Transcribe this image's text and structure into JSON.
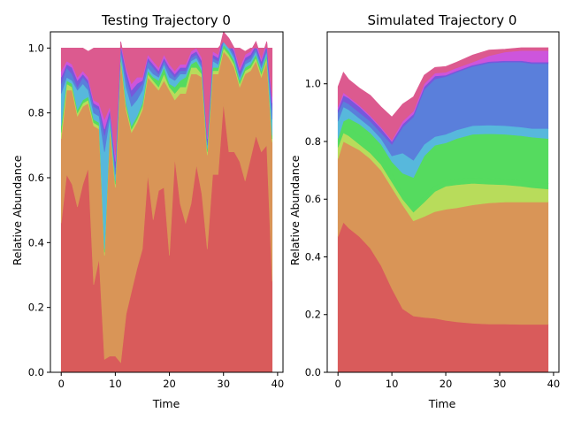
{
  "chart_data": [
    {
      "type": "area",
      "stacked": true,
      "title": "Testing Trajectory 0",
      "xlabel": "Time",
      "ylabel": "Relative Abundance",
      "xlim": [
        -2,
        41
      ],
      "ylim": [
        0,
        1.05
      ],
      "xticks": [
        0,
        10,
        20,
        30,
        40
      ],
      "yticks": [
        0.0,
        0.2,
        0.4,
        0.6,
        0.8,
        1.0
      ],
      "ytick_labels": [
        "0.0",
        "0.2",
        "0.4",
        "0.6",
        "0.8",
        "1.0"
      ],
      "grid": false,
      "x": [
        0,
        1,
        2,
        3,
        4,
        5,
        6,
        7,
        8,
        9,
        10,
        11,
        12,
        13,
        14,
        15,
        16,
        17,
        18,
        19,
        20,
        21,
        22,
        23,
        24,
        25,
        26,
        27,
        28,
        29,
        30,
        31,
        32,
        33,
        34,
        35,
        36,
        37,
        38,
        39
      ],
      "series": [
        {
          "color": "#d95b5b",
          "values": [
            0.46,
            0.61,
            0.58,
            0.51,
            0.58,
            0.63,
            0.27,
            0.35,
            0.04,
            0.05,
            0.05,
            0.03,
            0.18,
            0.25,
            0.32,
            0.38,
            0.61,
            0.47,
            0.56,
            0.57,
            0.36,
            0.66,
            0.52,
            0.46,
            0.52,
            0.64,
            0.55,
            0.38,
            0.61,
            0.61,
            0.83,
            0.68,
            0.68,
            0.65,
            0.59,
            0.66,
            0.73,
            0.68,
            0.7,
            0.28
          ]
        },
        {
          "color": "#d99557",
          "values": [
            0.26,
            0.26,
            0.29,
            0.28,
            0.24,
            0.2,
            0.49,
            0.4,
            0.32,
            0.7,
            0.52,
            0.93,
            0.63,
            0.49,
            0.45,
            0.43,
            0.3,
            0.42,
            0.31,
            0.33,
            0.51,
            0.18,
            0.34,
            0.4,
            0.4,
            0.28,
            0.36,
            0.29,
            0.31,
            0.31,
            0.16,
            0.29,
            0.26,
            0.23,
            0.33,
            0.27,
            0.23,
            0.23,
            0.26,
            0.43
          ]
        },
        {
          "color": "#b8dc5b",
          "values": [
            0.02,
            0.02,
            0.01,
            0.01,
            0.01,
            0.01,
            0.01,
            0.01,
            0.01,
            0.01,
            0.01,
            0.01,
            0.01,
            0.01,
            0.01,
            0.01,
            0.01,
            0.01,
            0.01,
            0.02,
            0.01,
            0.02,
            0.02,
            0.02,
            0.02,
            0.02,
            0.01,
            0.01,
            0.01,
            0.01,
            0.01,
            0.01,
            0.01,
            0.01,
            0.01,
            0.01,
            0.01,
            0.01,
            0.01,
            0.01
          ]
        },
        {
          "color": "#55db5f",
          "values": [
            0.02,
            0.01,
            0.01,
            0.01,
            0.01,
            0.01,
            0.01,
            0.01,
            0.01,
            0.01,
            0.01,
            0.01,
            0.01,
            0.01,
            0.01,
            0.01,
            0.01,
            0.01,
            0.02,
            0.02,
            0.01,
            0.02,
            0.02,
            0.03,
            0.01,
            0.02,
            0.01,
            0.01,
            0.01,
            0.01,
            0.01,
            0.01,
            0.01,
            0.01,
            0.01,
            0.01,
            0.01,
            0.01,
            0.01,
            0.01
          ]
        },
        {
          "color": "#57b8dc",
          "values": [
            0.1,
            0.01,
            0.01,
            0.06,
            0.05,
            0.02,
            0.02,
            0.02,
            0.3,
            0.02,
            0.02,
            0.01,
            0.05,
            0.06,
            0.05,
            0.04,
            0.01,
            0.01,
            0.01,
            0.01,
            0.02,
            0.02,
            0.02,
            0.01,
            0.01,
            0.01,
            0.01,
            0.01,
            0.02,
            0.01,
            0.01,
            0.01,
            0.01,
            0.01,
            0.01,
            0.01,
            0.01,
            0.01,
            0.01,
            0.05
          ]
        },
        {
          "color": "#5a7fdb",
          "values": [
            0.03,
            0.03,
            0.02,
            0.01,
            0.02,
            0.02,
            0.02,
            0.02,
            0.05,
            0.01,
            0.02,
            0.01,
            0.03,
            0.03,
            0.03,
            0.02,
            0.02,
            0.02,
            0.01,
            0.01,
            0.02,
            0.01,
            0.01,
            0.01,
            0.01,
            0.01,
            0.01,
            0.01,
            0.01,
            0.01,
            0.01,
            0.01,
            0.01,
            0.01,
            0.01,
            0.01,
            0.01,
            0.01,
            0.01,
            0.03
          ]
        },
        {
          "color": "#7758db",
          "values": [
            0.02,
            0.01,
            0.02,
            0.02,
            0.01,
            0.01,
            0.01,
            0.01,
            0.02,
            0.01,
            0.02,
            0.01,
            0.02,
            0.02,
            0.02,
            0.01,
            0.01,
            0.01,
            0.01,
            0.01,
            0.01,
            0.01,
            0.01,
            0.01,
            0.01,
            0.01,
            0.01,
            0.01,
            0.01,
            0.01,
            0.01,
            0.01,
            0.01,
            0.01,
            0.01,
            0.01,
            0.01,
            0.01,
            0.01,
            0.02
          ]
        },
        {
          "color": "#cd55dc",
          "values": [
            0.02,
            0.01,
            0.01,
            0.01,
            0.01,
            0.01,
            0.01,
            0.01,
            0.03,
            0.01,
            0.02,
            0.01,
            0.01,
            0.02,
            0.02,
            0.01,
            0.01,
            0.01,
            0.01,
            0.01,
            0.01,
            0.01,
            0.01,
            0.01,
            0.01,
            0.01,
            0.01,
            0.01,
            0.01,
            0.01,
            0.01,
            0.01,
            0.01,
            0.01,
            0.01,
            0.01,
            0.01,
            0.01,
            0.01,
            0.02
          ]
        },
        {
          "color": "#dc5a8f",
          "values": [
            0.07,
            0.04,
            0.05,
            0.09,
            0.07,
            0.08,
            0.16,
            0.17,
            0.22,
            0.18,
            0.33,
            -0.02,
            0.06,
            0.11,
            0.09,
            0.09,
            0.02,
            0.04,
            0.06,
            0.02,
            0.05,
            0.07,
            0.05,
            0.05,
            0.01,
            0.0,
            0.03,
            0.27,
            0.01,
            0.02,
            -0.03,
            -0.03,
            0.0,
            0.06,
            0.01,
            0.01,
            -0.02,
            0.03,
            -0.02,
            0.15
          ]
        }
      ]
    },
    {
      "type": "area",
      "stacked": true,
      "title": "Simulated Trajectory 0",
      "xlabel": "Time",
      "ylabel": "Relative Abundance",
      "xlim": [
        -2,
        41
      ],
      "ylim": [
        0,
        1.18
      ],
      "xticks": [
        0,
        10,
        20,
        30,
        40
      ],
      "yticks": [
        0.0,
        0.2,
        0.4,
        0.6,
        0.8,
        1.0
      ],
      "ytick_labels": [
        "0.0",
        "0.2",
        "0.4",
        "0.6",
        "0.8",
        "1.0"
      ],
      "grid": false,
      "x": [
        0,
        1,
        2,
        4,
        6,
        8,
        10,
        12,
        14,
        16,
        18,
        20,
        22,
        25,
        28,
        31,
        34,
        36,
        39
      ],
      "series": [
        {
          "color": "#d95b5b",
          "values": [
            0.47,
            0.52,
            0.5,
            0.47,
            0.43,
            0.37,
            0.29,
            0.22,
            0.195,
            0.19,
            0.187,
            0.18,
            0.175,
            0.17,
            0.167,
            0.167,
            0.166,
            0.166,
            0.166
          ]
        },
        {
          "color": "#d99557",
          "values": [
            0.27,
            0.28,
            0.29,
            0.3,
            0.31,
            0.33,
            0.35,
            0.36,
            0.33,
            0.35,
            0.37,
            0.385,
            0.395,
            0.41,
            0.42,
            0.423,
            0.424,
            0.424,
            0.424
          ]
        },
        {
          "color": "#b8dc5b",
          "values": [
            0.04,
            0.03,
            0.03,
            0.02,
            0.02,
            0.02,
            0.02,
            0.02,
            0.03,
            0.05,
            0.07,
            0.08,
            0.08,
            0.075,
            0.065,
            0.06,
            0.055,
            0.05,
            0.045
          ]
        },
        {
          "color": "#55db5f",
          "values": [
            0.02,
            0.02,
            0.03,
            0.03,
            0.03,
            0.03,
            0.03,
            0.02,
            0.02,
            0.02,
            0.02,
            0.02,
            0.02,
            0.02,
            0.02,
            0.02,
            0.02,
            0.02,
            0.02
          ]
        },
        {
          "color": "#55db5f",
          "values": [
            0.01,
            0.02,
            0.03,
            0.04,
            0.04,
            0.04,
            0.04,
            0.07,
            0.1,
            0.14,
            0.14,
            0.13,
            0.14,
            0.15,
            0.155,
            0.155,
            0.155,
            0.155,
            0.155
          ]
        },
        {
          "color": "#57b8dc",
          "values": [
            0.06,
            0.05,
            0.03,
            0.02,
            0.02,
            0.02,
            0.02,
            0.07,
            0.06,
            0.04,
            0.03,
            0.03,
            0.03,
            0.03,
            0.03,
            0.03,
            0.03,
            0.03,
            0.035
          ]
        },
        {
          "color": "#5a7fdb",
          "values": [
            0.03,
            0.02,
            0.02,
            0.02,
            0.02,
            0.02,
            0.04,
            0.09,
            0.15,
            0.19,
            0.2,
            0.2,
            0.2,
            0.205,
            0.215,
            0.22,
            0.225,
            0.225,
            0.225
          ]
        },
        {
          "color": "#7758db",
          "values": [
            0.01,
            0.02,
            0.02,
            0.02,
            0.015,
            0.015,
            0.01,
            0.01,
            0.01,
            0.01,
            0.01,
            0.005,
            0.005,
            0.005,
            0.005,
            0.005,
            0.005,
            0.005,
            0.005
          ]
        },
        {
          "color": "#cd55dc",
          "values": [
            0.01,
            0.01,
            0.005,
            0.005,
            0.005,
            0.005,
            0.005,
            0.01,
            0.01,
            0.01,
            0.01,
            0.01,
            0.01,
            0.01,
            0.02,
            0.03,
            0.035,
            0.04,
            0.04
          ]
        },
        {
          "color": "#dc5a8f",
          "values": [
            0.07,
            0.07,
            0.06,
            0.06,
            0.07,
            0.07,
            0.08,
            0.06,
            0.05,
            0.03,
            0.02,
            0.02,
            0.02,
            0.025,
            0.02,
            0.01,
            0.01,
            0.01,
            0.01
          ]
        }
      ]
    }
  ]
}
